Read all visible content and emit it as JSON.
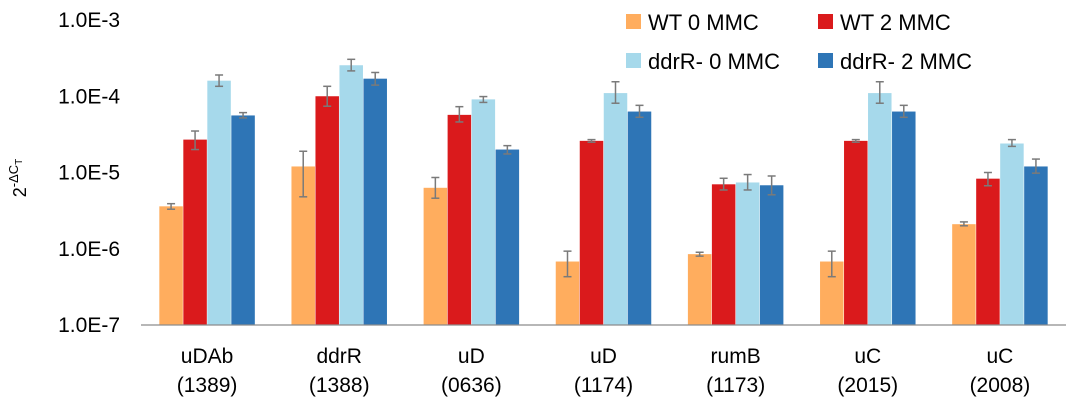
{
  "chart_data": {
    "type": "bar",
    "y_scale": "log",
    "ylim": [
      1e-07,
      0.001
    ],
    "grid": false,
    "legend_position": "top-right",
    "ylabel": {
      "base": "2",
      "sup_prefix": "-Δ",
      "sup_main": "C",
      "sup_sub": "T"
    },
    "yticks": [
      {
        "value": 0.001,
        "label": "1.0E-3"
      },
      {
        "value": 0.0001,
        "label": "1.0E-4"
      },
      {
        "value": 1e-05,
        "label": "1.0E-5"
      },
      {
        "value": 1e-06,
        "label": "1.0E-6"
      },
      {
        "value": 1e-07,
        "label": "1.0E-7"
      }
    ],
    "categories": [
      {
        "line1": "uDAb",
        "line2": "(1389)"
      },
      {
        "line1": "ddrR",
        "line2": "(1388)"
      },
      {
        "line1": "uD",
        "line2": "(0636)"
      },
      {
        "line1": "uD",
        "line2": "(1174)"
      },
      {
        "line1": "rumB",
        "line2": "(1173)"
      },
      {
        "line1": "uC",
        "line2": "(2015)"
      },
      {
        "line1": "uC",
        "line2": "(2008)"
      }
    ],
    "series": [
      {
        "name": "WT 0 MMC",
        "color": "#FFAD5E",
        "values": [
          3.6e-06,
          1.2e-05,
          6.3e-06,
          6.8e-07,
          8.5e-07,
          6.8e-07,
          2.1e-06
        ],
        "err_low": [
          3.3e-06,
          4.8e-06,
          4.6e-06,
          4.3e-07,
          8e-07,
          4.3e-07,
          2e-06
        ],
        "err_high": [
          3.9e-06,
          1.9e-05,
          8.6e-06,
          9.3e-07,
          9e-07,
          9.3e-07,
          2.25e-06
        ]
      },
      {
        "name": "WT 2 MMC",
        "color": "#DA1A1C",
        "values": [
          2.7e-05,
          0.0001,
          5.7e-05,
          2.6e-05,
          7e-06,
          2.6e-05,
          8.3e-06
        ],
        "err_low": [
          2e-05,
          7.4e-05,
          4.6e-05,
          2.5e-05,
          5.9e-06,
          2.5e-05,
          6.7e-06
        ],
        "err_high": [
          3.5e-05,
          0.000135,
          7.3e-05,
          2.7e-05,
          8.4e-06,
          2.7e-05,
          1e-05
        ]
      },
      {
        "name": "ddrR- 0 MMC",
        "color": "#A6D9EB",
        "values": [
          0.00016,
          0.000255,
          9.1e-05,
          0.00011,
          7.4e-06,
          0.00011,
          2.4e-05
        ],
        "err_low": [
          0.000135,
          0.000215,
          8.3e-05,
          8.1e-05,
          5.9e-06,
          8.1e-05,
          2.2e-05
        ],
        "err_high": [
          0.00019,
          0.000305,
          9.9e-05,
          0.000155,
          9.4e-06,
          0.000155,
          2.7e-05
        ]
      },
      {
        "name": "ddrR- 2 MMC",
        "color": "#2E75B6",
        "values": [
          5.6e-05,
          0.00017,
          2e-05,
          6.3e-05,
          6.8e-06,
          6.3e-05,
          1.2e-05
        ],
        "err_low": [
          5.2e-05,
          0.00014,
          1.75e-05,
          5.3e-05,
          5.1e-06,
          5.3e-05,
          9.8e-06
        ],
        "err_high": [
          6.1e-05,
          0.000205,
          2.25e-05,
          7.6e-05,
          9e-06,
          7.6e-05,
          1.5e-05
        ]
      }
    ]
  }
}
